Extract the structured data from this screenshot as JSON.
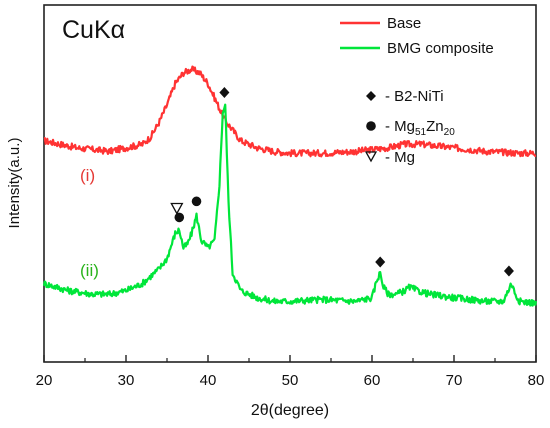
{
  "chart_data": {
    "type": "line",
    "annotation_top_left": "CuKα",
    "xlabel": "2θ(degree)",
    "ylabel": "Intensity(a.u.)",
    "xlim": [
      20,
      80
    ],
    "xticks": [
      "20",
      "30",
      "40",
      "50",
      "60",
      "70",
      "80"
    ],
    "y_tick_labels_shown": false,
    "grid": false,
    "legend": {
      "placement": "top-right",
      "entries": [
        {
          "label": "Base",
          "color": "#ff3333"
        },
        {
          "label": "BMG composite",
          "color": "#00e63a"
        }
      ]
    },
    "phase_legend": [
      {
        "symbol": "diamond",
        "text": "- B2-NiTi"
      },
      {
        "symbol": "circle",
        "text_main": "- Mg",
        "sub1": "51",
        "mid": "Zn",
        "sub2": "20"
      },
      {
        "symbol": "triangle-down",
        "text": "- Mg"
      }
    ],
    "curve_labels": [
      {
        "text": "(i)",
        "color": "#e53935"
      },
      {
        "text": "(ii)",
        "color": "#29b31b"
      }
    ],
    "series": [
      {
        "name": "Base",
        "color": "#ff3333",
        "x": [
          20,
          24,
          28,
          30,
          32,
          33,
          34,
          35,
          36,
          37,
          38,
          39,
          40,
          41,
          42,
          43,
          44,
          46,
          48,
          50,
          54,
          58,
          62,
          64,
          66,
          68,
          70,
          74,
          78,
          80
        ],
        "y": [
          0.62,
          0.6,
          0.59,
          0.6,
          0.61,
          0.63,
          0.67,
          0.72,
          0.78,
          0.81,
          0.82,
          0.81,
          0.78,
          0.73,
          0.68,
          0.65,
          0.62,
          0.6,
          0.59,
          0.585,
          0.585,
          0.59,
          0.6,
          0.61,
          0.61,
          0.605,
          0.6,
          0.59,
          0.585,
          0.585
        ]
      },
      {
        "name": "BMG composite",
        "color": "#00e63a",
        "x": [
          20,
          23,
          26,
          28,
          30,
          32,
          33,
          34,
          35,
          36,
          36.5,
          37,
          37.5,
          38,
          38.6,
          39.2,
          40,
          40.8,
          41.4,
          41.8,
          42.1,
          42.5,
          43,
          44,
          46,
          48,
          50,
          54,
          58,
          60,
          60.6,
          61,
          61.4,
          62,
          63,
          64,
          64.6,
          65.5,
          67,
          70,
          74,
          76,
          76.6,
          77,
          77.5,
          78,
          80
        ],
        "y": [
          0.22,
          0.2,
          0.19,
          0.19,
          0.2,
          0.22,
          0.24,
          0.26,
          0.29,
          0.36,
          0.37,
          0.32,
          0.33,
          0.36,
          0.41,
          0.34,
          0.32,
          0.34,
          0.5,
          0.7,
          0.72,
          0.45,
          0.25,
          0.2,
          0.18,
          0.17,
          0.17,
          0.175,
          0.17,
          0.18,
          0.23,
          0.25,
          0.21,
          0.19,
          0.19,
          0.2,
          0.21,
          0.2,
          0.19,
          0.18,
          0.17,
          0.17,
          0.2,
          0.22,
          0.19,
          0.17,
          0.165
        ]
      }
    ],
    "markers": [
      {
        "symbol": "triangle-down",
        "x": 36.2,
        "y": 0.43
      },
      {
        "symbol": "circle",
        "x": 36.5,
        "y": 0.405
      },
      {
        "symbol": "circle",
        "x": 38.6,
        "y": 0.45
      },
      {
        "symbol": "diamond",
        "x": 42.0,
        "y": 0.755
      },
      {
        "symbol": "diamond",
        "x": 61.0,
        "y": 0.28
      },
      {
        "symbol": "diamond",
        "x": 76.7,
        "y": 0.255
      }
    ]
  }
}
